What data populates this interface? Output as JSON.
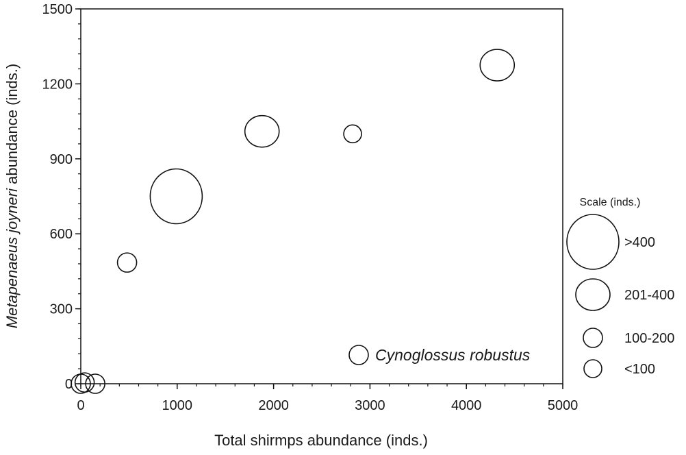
{
  "chart_data": {
    "type": "scatter",
    "subtype": "bubble",
    "xlabel": "Total shirmps abundance (inds.)",
    "ylabel_italic": "Metapenaeus joyneri",
    "ylabel_rest": " abundance (inds.)",
    "xlim": [
      0,
      5000
    ],
    "ylim": [
      0,
      1500
    ],
    "x_ticks": [
      0,
      1000,
      2000,
      3000,
      4000,
      5000
    ],
    "y_ticks": [
      0,
      300,
      600,
      900,
      1200,
      1500
    ],
    "x_tick_labels": [
      "0",
      "1000",
      "2000",
      "3000",
      "4000",
      "5000"
    ],
    "y_tick_labels": [
      "0",
      "300",
      "600",
      "900",
      "1200",
      "1500"
    ],
    "species_label": "Cynoglossus robustus",
    "species_marker_class": "100-200",
    "points": [
      {
        "x": 0,
        "y": 0,
        "size_class": "100-200"
      },
      {
        "x": 40,
        "y": 5,
        "size_class": "100-200"
      },
      {
        "x": 150,
        "y": 0,
        "size_class": "100-200"
      },
      {
        "x": 480,
        "y": 485,
        "size_class": "100-200"
      },
      {
        "x": 990,
        "y": 750,
        "size_class": ">400"
      },
      {
        "x": 1880,
        "y": 1010,
        "size_class": "201-400"
      },
      {
        "x": 2820,
        "y": 1000,
        "size_class": "<100"
      },
      {
        "x": 4320,
        "y": 1275,
        "size_class": "201-400"
      }
    ],
    "legend": {
      "title": "Scale (inds.)",
      "position": "right",
      "entries": [
        {
          "label": ">400",
          "size_class": ">400"
        },
        {
          "label": "201-400",
          "size_class": "201-400"
        },
        {
          "label": "100-200",
          "size_class": "100-200"
        },
        {
          "label": "<100",
          "size_class": "<100"
        }
      ]
    }
  }
}
